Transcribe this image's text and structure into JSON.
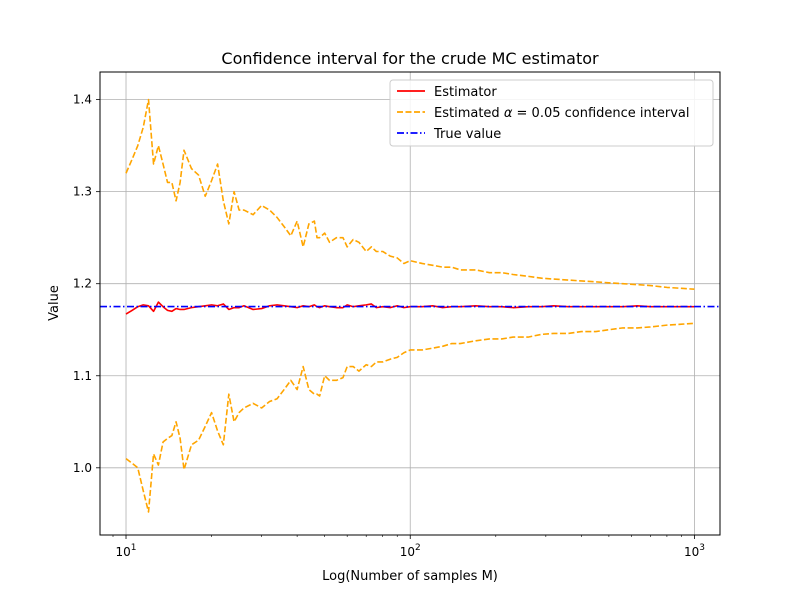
{
  "chart_data": {
    "type": "line",
    "title": "Confidence interval for the crude MC estimator",
    "xlabel": "Log(Number of samples M)",
    "ylabel": "Value",
    "xscale": "log",
    "xlim": [
      8.1,
      1230
    ],
    "ylim": [
      0.927,
      1.43
    ],
    "grid": true,
    "legend_position": "top-right",
    "x_ticks": [
      {
        "value": 10,
        "label": "10",
        "exp": "1"
      },
      {
        "value": 100,
        "label": "10",
        "exp": "2"
      },
      {
        "value": 1000,
        "label": "10",
        "exp": "3"
      }
    ],
    "y_ticks": [
      {
        "value": 1.0,
        "label": "1.0"
      },
      {
        "value": 1.1,
        "label": "1.1"
      },
      {
        "value": 1.2,
        "label": "1.2"
      },
      {
        "value": 1.3,
        "label": "1.3"
      },
      {
        "value": 1.4,
        "label": "1.4"
      }
    ],
    "legend": {
      "estimator": "Estimator",
      "ci_prefix": "Estimated ",
      "ci_symbol": "α",
      "ci_suffix": " = 0.05 confidence interval",
      "true_value": "True value"
    },
    "colors": {
      "estimator": "#ff0000",
      "ci": "#ffa500",
      "true_value": "#0000ff",
      "grid": "#b0b0b0"
    },
    "true_value": 1.1752,
    "x": [
      10,
      10.5,
      11,
      11.5,
      12,
      12.5,
      13,
      13.5,
      14,
      14.5,
      15,
      15.5,
      16,
      17,
      18,
      19,
      20,
      21,
      22,
      23,
      24,
      25,
      26,
      28,
      30,
      32,
      34,
      36,
      38,
      40,
      42,
      44,
      46,
      47,
      48,
      50,
      52,
      55,
      58,
      60,
      63,
      66,
      70,
      73,
      76,
      80,
      85,
      90,
      95,
      100,
      110,
      120,
      130,
      140,
      150,
      170,
      190,
      210,
      230,
      260,
      290,
      320,
      360,
      400,
      450,
      500,
      560,
      630,
      700,
      800,
      900,
      1000
    ],
    "series": [
      {
        "name": "estimator",
        "values": [
          1.167,
          1.171,
          1.175,
          1.177,
          1.176,
          1.17,
          1.18,
          1.175,
          1.171,
          1.17,
          1.173,
          1.172,
          1.172,
          1.174,
          1.175,
          1.176,
          1.177,
          1.176,
          1.178,
          1.172,
          1.174,
          1.174,
          1.176,
          1.172,
          1.173,
          1.176,
          1.177,
          1.176,
          1.175,
          1.174,
          1.176,
          1.175,
          1.177,
          1.175,
          1.174,
          1.176,
          1.175,
          1.174,
          1.174,
          1.177,
          1.175,
          1.176,
          1.177,
          1.178,
          1.174,
          1.175,
          1.174,
          1.176,
          1.174,
          1.175,
          1.175,
          1.176,
          1.174,
          1.175,
          1.175,
          1.176,
          1.175,
          1.175,
          1.174,
          1.175,
          1.175,
          1.176,
          1.175,
          1.175,
          1.175,
          1.175,
          1.175,
          1.176,
          1.175,
          1.175,
          1.175,
          1.175
        ]
      },
      {
        "name": "ci_upper",
        "values": [
          1.32,
          1.335,
          1.35,
          1.37,
          1.4,
          1.33,
          1.35,
          1.33,
          1.31,
          1.31,
          1.29,
          1.31,
          1.345,
          1.325,
          1.318,
          1.295,
          1.312,
          1.33,
          1.29,
          1.265,
          1.3,
          1.28,
          1.28,
          1.275,
          1.285,
          1.28,
          1.272,
          1.262,
          1.252,
          1.268,
          1.24,
          1.265,
          1.268,
          1.25,
          1.25,
          1.255,
          1.245,
          1.25,
          1.25,
          1.24,
          1.248,
          1.245,
          1.235,
          1.24,
          1.235,
          1.235,
          1.23,
          1.228,
          1.222,
          1.225,
          1.222,
          1.22,
          1.218,
          1.218,
          1.215,
          1.215,
          1.212,
          1.212,
          1.21,
          1.208,
          1.206,
          1.205,
          1.204,
          1.203,
          1.202,
          1.201,
          1.2,
          1.199,
          1.198,
          1.196,
          1.195,
          1.194
        ]
      },
      {
        "name": "ci_lower",
        "values": [
          1.01,
          1.005,
          1.0,
          0.975,
          0.952,
          1.015,
          1.003,
          1.028,
          1.032,
          1.035,
          1.05,
          1.032,
          0.998,
          1.025,
          1.03,
          1.045,
          1.06,
          1.04,
          1.025,
          1.08,
          1.05,
          1.06,
          1.065,
          1.07,
          1.065,
          1.072,
          1.075,
          1.085,
          1.095,
          1.085,
          1.11,
          1.085,
          1.08,
          1.08,
          1.078,
          1.1,
          1.095,
          1.095,
          1.098,
          1.11,
          1.11,
          1.105,
          1.112,
          1.11,
          1.115,
          1.115,
          1.118,
          1.12,
          1.125,
          1.128,
          1.128,
          1.13,
          1.132,
          1.135,
          1.135,
          1.138,
          1.14,
          1.14,
          1.142,
          1.142,
          1.145,
          1.146,
          1.146,
          1.148,
          1.148,
          1.15,
          1.152,
          1.152,
          1.153,
          1.155,
          1.156,
          1.157
        ]
      }
    ]
  }
}
